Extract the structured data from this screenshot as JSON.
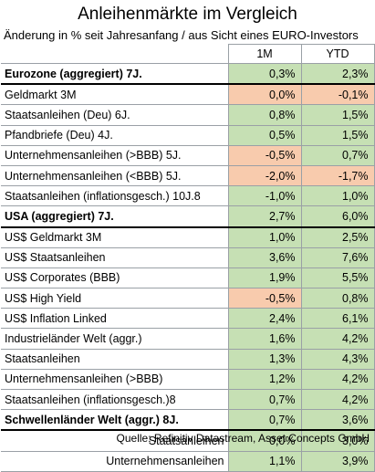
{
  "title": "Anleihenmärkte im Vergleich",
  "subtitle": "Änderung in % seit Jahresanfang / aus Sicht eines EURO-Investors",
  "columns": {
    "m1": "1M",
    "ytd": "YTD"
  },
  "rows": [
    {
      "label": "Eurozone (aggregiert) 7J.",
      "m1": "0,3%",
      "ytd": "2,3%"
    },
    {
      "label": "Geldmarkt 3M",
      "m1": "0,0%",
      "ytd": "-0,1%"
    },
    {
      "label": "Staatsanleihen (Deu) 6J.",
      "m1": "0,8%",
      "ytd": "1,5%"
    },
    {
      "label": "Pfandbriefe (Deu) 4J.",
      "m1": "0,5%",
      "ytd": "1,5%"
    },
    {
      "label": "Unternehmensanleihen (>BBB) 5J.",
      "m1": "-0,5%",
      "ytd": "0,7%"
    },
    {
      "label": "Unternehmensanleihen (<BBB) 5J.",
      "m1": "-2,0%",
      "ytd": "-1,7%"
    },
    {
      "label": "Staatsanleihen (inflationsgesch.) 10J.8",
      "m1": "-1,0%",
      "ytd": "1,0%"
    },
    {
      "label": "USA (aggregiert) 7J.",
      "m1": "2,7%",
      "ytd": "6,0%"
    },
    {
      "label": "US$ Geldmarkt 3M",
      "m1": "1,0%",
      "ytd": "2,5%"
    },
    {
      "label": "US$ Staatsanleihen",
      "m1": "3,6%",
      "ytd": "7,6%"
    },
    {
      "label": "US$ Corporates (BBB)",
      "m1": "1,9%",
      "ytd": "5,5%"
    },
    {
      "label": "US$ High Yield",
      "m1": "-0,5%",
      "ytd": "0,8%"
    },
    {
      "label": "US$ Inflation Linked",
      "m1": "2,4%",
      "ytd": "6,1%"
    },
    {
      "label": "Industrieländer Welt (aggr.)",
      "m1": "1,6%",
      "ytd": "4,2%"
    },
    {
      "label": "Staatsanleihen",
      "m1": "1,3%",
      "ytd": "4,3%"
    },
    {
      "label": "Unternehmensanleihen (>BBB)",
      "m1": "1,2%",
      "ytd": "4,2%"
    },
    {
      "label": "Staatsanleihen (inflationsgesch.)8",
      "m1": "0,7%",
      "ytd": "4,2%"
    },
    {
      "label": "Schwellenländer Welt (aggr.) 8J.",
      "m1": "0,7%",
      "ytd": "3,6%"
    },
    {
      "label": "Staatsanleihen",
      "m1": "0,0%",
      "ytd": "3,0%"
    },
    {
      "label": "Unternehmensanleihen",
      "m1": "1,1%",
      "ytd": "3,9%"
    }
  ],
  "colors": {
    "positive": "#c6e0b4",
    "negative": "#f8cbad"
  },
  "source": "Quelle: Refinitiv Datastream, Asset Concepts GmbH"
}
